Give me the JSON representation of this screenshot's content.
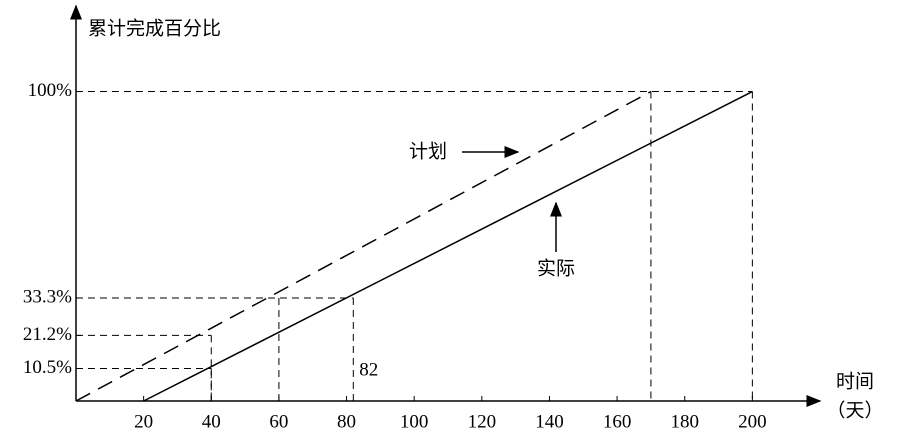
{
  "chart_data": {
    "type": "line",
    "y_label": "累计完成百分比",
    "x_label": [
      "时间",
      "（天）"
    ],
    "series": [
      {
        "name": "计划",
        "color": "#000000",
        "dash": true,
        "x": [
          0,
          170
        ],
        "values": [
          0,
          100
        ]
      },
      {
        "name": "实际",
        "color": "#000000",
        "dash": false,
        "x": [
          20,
          200
        ],
        "values": [
          0,
          100
        ]
      }
    ],
    "reference_points": {
      "x": [
        40,
        40,
        60,
        82,
        170,
        200
      ],
      "y": [
        10.5,
        21.2,
        33.3,
        33.3,
        100,
        100
      ],
      "labels": [
        null,
        null,
        null,
        "82",
        null,
        null
      ]
    },
    "xlim": [
      0,
      220
    ],
    "ylim": [
      0,
      127
    ],
    "xticks": [
      20,
      40,
      60,
      80,
      100,
      120,
      140,
      160,
      180,
      200
    ],
    "yticks": [
      {
        "value": 10.5,
        "label": "10.5%"
      },
      {
        "value": 21.2,
        "label": "21.2%"
      },
      {
        "value": 33.3,
        "label": "33.3%"
      },
      {
        "value": 100,
        "label": "100%"
      }
    ],
    "grid": false
  }
}
